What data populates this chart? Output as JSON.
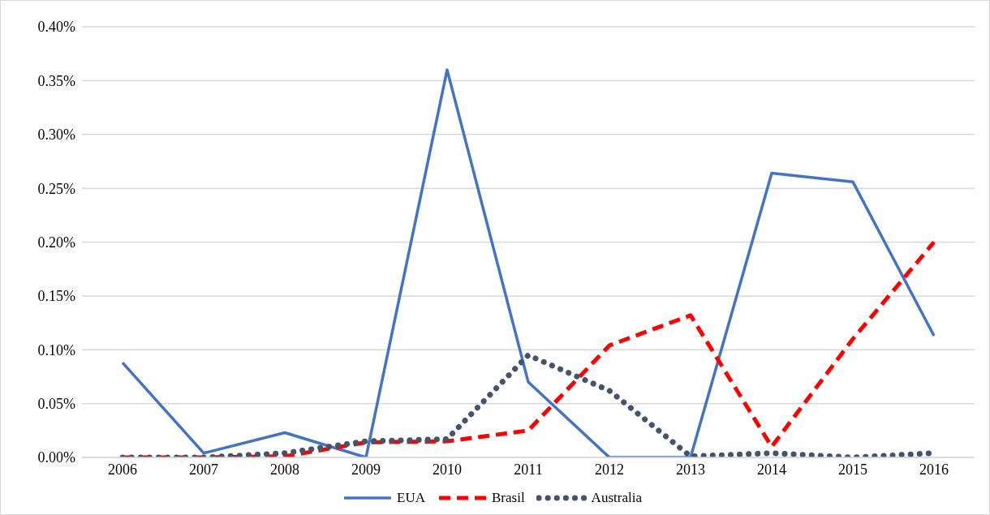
{
  "chart_data": {
    "type": "line",
    "categories": [
      "2006",
      "2007",
      "2008",
      "2009",
      "2010",
      "2011",
      "2012",
      "2013",
      "2014",
      "2015",
      "2016"
    ],
    "series": [
      {
        "name": "EUA",
        "color": "#4472c4",
        "line_style": "solid",
        "values": [
          0.088,
          0.004,
          0.023,
          0,
          0.36,
          0.07,
          0,
          0,
          0.264,
          0.256,
          0.113
        ]
      },
      {
        "name": "Brasil",
        "color": "#ff0000",
        "line_style": "dashed",
        "values": [
          0,
          0,
          0.001,
          0.014,
          0.015,
          0.025,
          0.104,
          0.132,
          0.01,
          0.11,
          0.2
        ]
      },
      {
        "name": "Australia",
        "color": "#44546a",
        "line_style": "dotted",
        "values": [
          0,
          0,
          0.004,
          0.015,
          0.017,
          0.095,
          0.062,
          0.001,
          0.004,
          0,
          0.004
        ]
      }
    ],
    "ylim": [
      0,
      0.4
    ],
    "yticks": [
      {
        "value": 0,
        "label": "0.00%"
      },
      {
        "value": 0.05,
        "label": "0.05%"
      },
      {
        "value": 0.1,
        "label": "0.10%"
      },
      {
        "value": 0.15,
        "label": "0.15%"
      },
      {
        "value": 0.2,
        "label": "0.20%"
      },
      {
        "value": 0.25,
        "label": "0.25%"
      },
      {
        "value": 0.3,
        "label": "0.30%"
      },
      {
        "value": 0.35,
        "label": "0.35%"
      },
      {
        "value": 0.4,
        "label": "0.40%"
      }
    ],
    "grid": "y",
    "legend": "bottom",
    "marker": "none"
  }
}
